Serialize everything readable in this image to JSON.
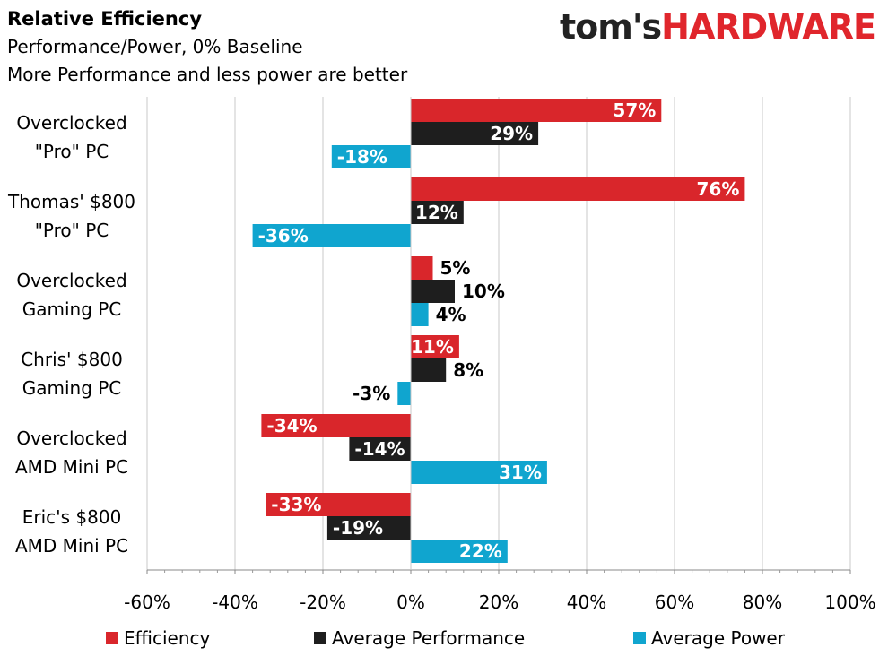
{
  "header": {
    "title": "Relative Efficiency",
    "subtitle1": "Performance/Power, 0% Baseline",
    "subtitle2": "More Performance and less power are better"
  },
  "logo": {
    "prefix": "tom's",
    "suffix": "HARDWARE"
  },
  "chart_data": {
    "type": "bar",
    "orientation": "horizontal",
    "title": "Relative Efficiency",
    "subtitle": [
      "Performance/Power, 0% Baseline",
      "More Performance and less power are better"
    ],
    "categories": [
      [
        "Overclocked",
        "\"Pro\" PC"
      ],
      [
        "Thomas' $800",
        "\"Pro\" PC"
      ],
      [
        "Overclocked",
        "Gaming PC"
      ],
      [
        "Chris' $800",
        "Gaming PC"
      ],
      [
        "Overclocked",
        "AMD Mini PC"
      ],
      [
        "Eric's $800",
        "AMD Mini PC"
      ]
    ],
    "series": [
      {
        "name": "Efficiency",
        "color": "#d9262b",
        "values": [
          57,
          76,
          5,
          11,
          -34,
          -33
        ],
        "labels": [
          "57%",
          "76%",
          "5%",
          "11%",
          "-34%",
          "-33%"
        ]
      },
      {
        "name": "Average Performance",
        "color": "#1e1e1e",
        "values": [
          29,
          12,
          10,
          8,
          -14,
          -19
        ],
        "labels": [
          "29%",
          "12%",
          "10%",
          "8%",
          "-14%",
          "-19%"
        ]
      },
      {
        "name": "Average Power",
        "color": "#10a5cf",
        "values": [
          -18,
          -36,
          4,
          -3,
          31,
          22
        ],
        "labels": [
          "-18%",
          "-36%",
          "4%",
          "-3%",
          "31%",
          "22%"
        ]
      }
    ],
    "xlim": [
      -60,
      100
    ],
    "xticks": [
      -60,
      -40,
      -20,
      0,
      20,
      40,
      60,
      80,
      100
    ],
    "xtick_labels": [
      "-60%",
      "-40%",
      "-20%",
      "0%",
      "20%",
      "40%",
      "60%",
      "80%",
      "100%"
    ],
    "grid": true,
    "legend_position": "bottom"
  }
}
